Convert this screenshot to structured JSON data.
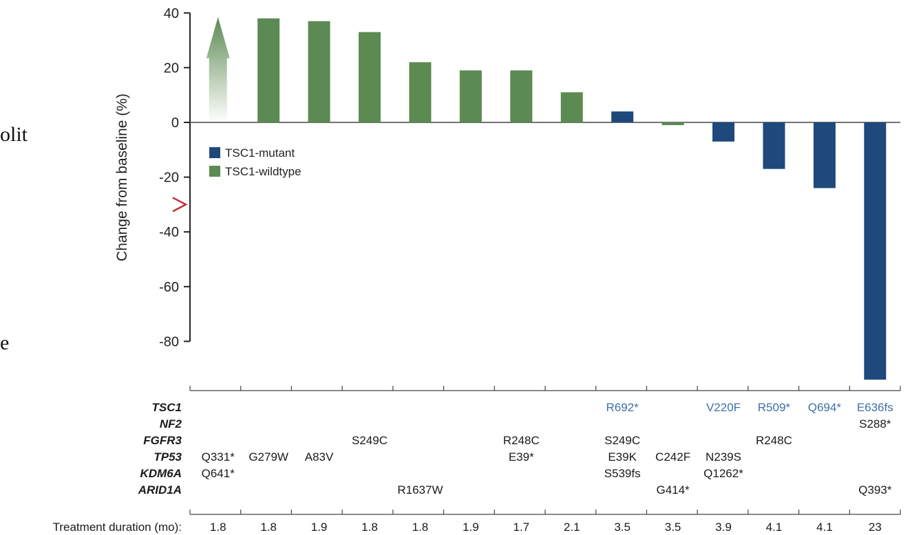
{
  "fragments": {
    "cut_text_1": "olit",
    "cut_text_2": "e"
  },
  "chart_data": {
    "type": "bar",
    "ylabel": "Change from baseline (%)",
    "ylim": [
      -95,
      40
    ],
    "yticks": [
      40,
      20,
      0,
      -20,
      -40,
      -60,
      -80
    ],
    "grid": false,
    "legend_position": "top-left",
    "threshold_marker": -30,
    "series": [
      {
        "name": "TSC1-mutant",
        "color": "#1f497d"
      },
      {
        "name": "TSC1-wildtype",
        "color": "#5b8a52"
      }
    ],
    "bars": [
      {
        "value": 30,
        "group": "TSC1-wildtype",
        "arrow": true,
        "duration": "1.8"
      },
      {
        "value": 38,
        "group": "TSC1-wildtype",
        "duration": "1.8"
      },
      {
        "value": 37,
        "group": "TSC1-wildtype",
        "duration": "1.9"
      },
      {
        "value": 33,
        "group": "TSC1-wildtype",
        "duration": "1.8"
      },
      {
        "value": 22,
        "group": "TSC1-wildtype",
        "duration": "1.8"
      },
      {
        "value": 19,
        "group": "TSC1-wildtype",
        "duration": "1.9"
      },
      {
        "value": 19,
        "group": "TSC1-wildtype",
        "duration": "1.7"
      },
      {
        "value": 11,
        "group": "TSC1-wildtype",
        "duration": "2.1"
      },
      {
        "value": 4,
        "group": "TSC1-mutant",
        "duration": "3.5"
      },
      {
        "value": -1,
        "group": "TSC1-wildtype",
        "duration": "3.5"
      },
      {
        "value": -7,
        "group": "TSC1-mutant",
        "duration": "3.9"
      },
      {
        "value": -17,
        "group": "TSC1-mutant",
        "duration": "4.1"
      },
      {
        "value": -24,
        "group": "TSC1-mutant",
        "duration": "4.1"
      },
      {
        "value": -94,
        "group": "TSC1-mutant",
        "duration": "23"
      }
    ],
    "genes": [
      {
        "name": "TSC1",
        "color": "#3d6fa8",
        "mutations": [
          "",
          "",
          "",
          "",
          "",
          "",
          "",
          "",
          "R692*",
          "",
          "V220F",
          "R509*",
          "Q694*",
          "E636fs"
        ]
      },
      {
        "name": "NF2",
        "color": "#1a1a1a",
        "mutations": [
          "",
          "",
          "",
          "",
          "",
          "",
          "",
          "",
          "",
          "",
          "",
          "",
          "",
          "S288*"
        ]
      },
      {
        "name": "FGFR3",
        "color": "#1a1a1a",
        "mutations": [
          "",
          "",
          "",
          "S249C",
          "",
          "",
          "R248C",
          "",
          "S249C",
          "",
          "",
          "R248C",
          "",
          ""
        ]
      },
      {
        "name": "TP53",
        "color": "#1a1a1a",
        "mutations": [
          "Q331*",
          "G279W",
          "A83V",
          "",
          "",
          "",
          "E39*",
          "",
          "E39K",
          "C242F",
          "N239S",
          "",
          "",
          ""
        ]
      },
      {
        "name": "KDM6A",
        "color": "#1a1a1a",
        "mutations": [
          "Q641*",
          "",
          "",
          "",
          "",
          "",
          "",
          "",
          "S539fs",
          "",
          "Q1262*",
          "",
          "",
          ""
        ]
      },
      {
        "name": "ARID1A",
        "color": "#1a1a1a",
        "mutations": [
          "",
          "",
          "",
          "",
          "R1637W",
          "",
          "",
          "",
          "",
          "G414*",
          "",
          "",
          "",
          "Q393*"
        ]
      }
    ],
    "duration_label": "Treatment duration (mo):"
  }
}
